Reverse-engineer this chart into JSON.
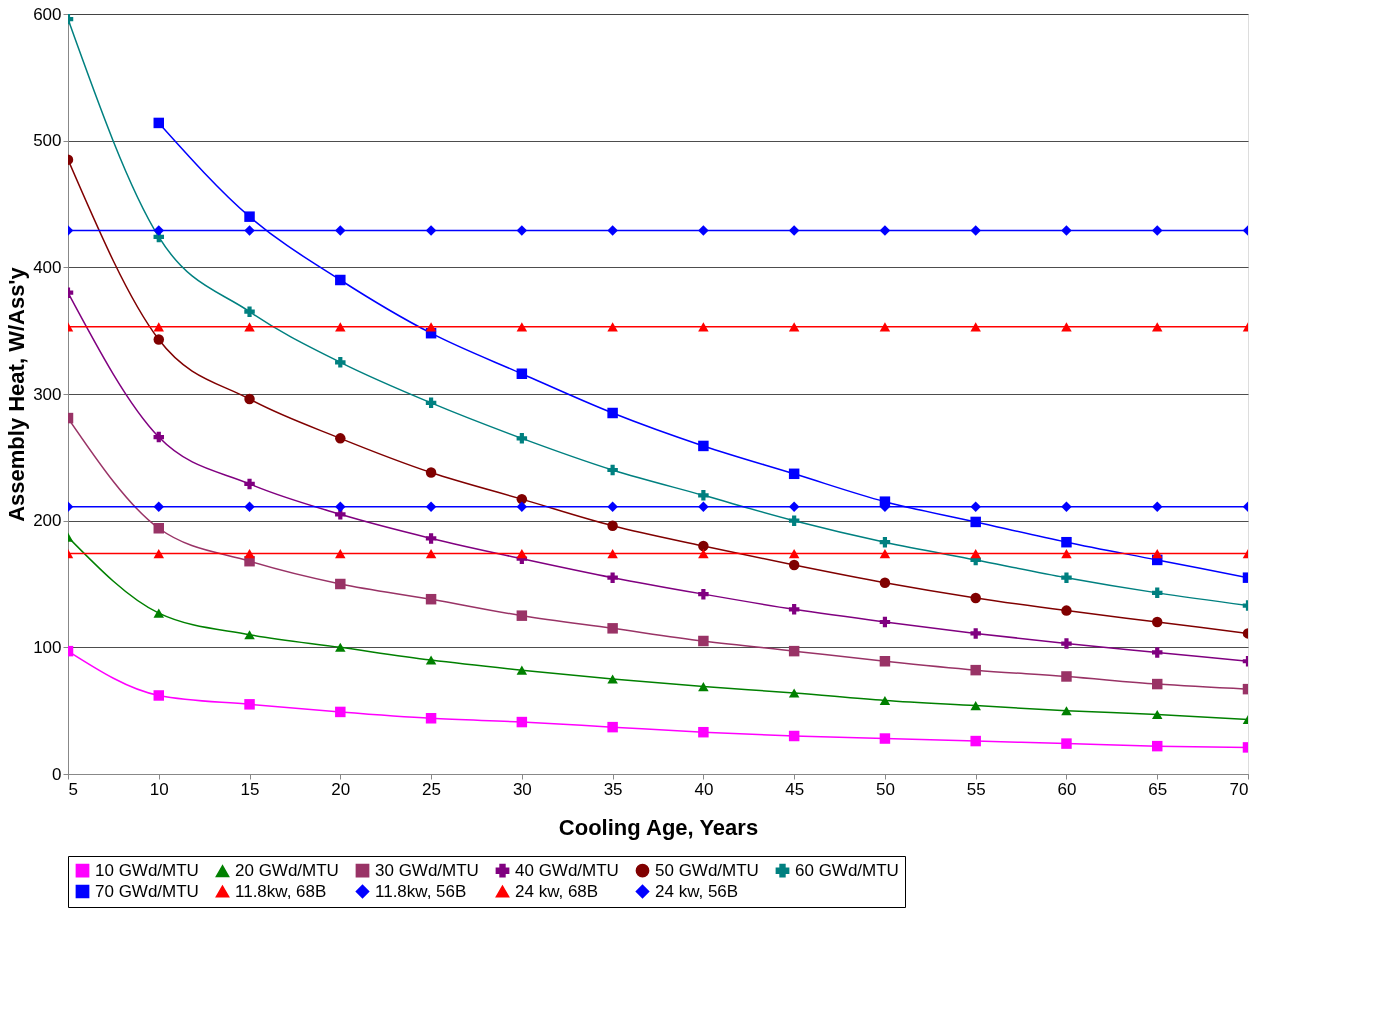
{
  "chart_data": {
    "type": "line",
    "xlabel": "Cooling Age, Years",
    "ylabel": "Assembly Heat, W/Ass'y",
    "x": [
      5,
      10,
      15,
      20,
      25,
      30,
      35,
      40,
      45,
      50,
      55,
      60,
      65,
      70
    ],
    "xlim": [
      5,
      70
    ],
    "xticks": [
      5,
      10,
      15,
      20,
      25,
      30,
      35,
      40,
      45,
      50,
      55,
      60,
      65,
      70
    ],
    "ylim": [
      0,
      600
    ],
    "yticks": [
      0,
      100,
      200,
      300,
      400,
      500,
      600
    ],
    "grid": "y",
    "legend": "bottom",
    "series": [
      {
        "name": "10 GWd/MTU",
        "color": "#ff00ff",
        "marker": "square",
        "values": [
          97,
          62,
          55,
          49,
          44,
          41,
          37,
          33,
          30,
          28,
          26,
          24,
          22,
          21
        ]
      },
      {
        "name": "20 GWd/MTU",
        "color": "#008000",
        "marker": "triangle",
        "values": [
          187,
          127,
          110,
          100,
          90,
          82,
          75,
          69,
          64,
          58,
          54,
          50,
          47,
          43
        ]
      },
      {
        "name": "30 GWd/MTU",
        "color": "#993366",
        "marker": "square",
        "values": [
          281,
          194,
          168,
          150,
          138,
          125,
          115,
          105,
          97,
          89,
          82,
          77,
          71,
          67
        ]
      },
      {
        "name": "40 GWd/MTU",
        "color": "#800080",
        "marker": "cross",
        "values": [
          380,
          266,
          229,
          205,
          186,
          170,
          155,
          142,
          130,
          120,
          111,
          103,
          96,
          89
        ]
      },
      {
        "name": "50 GWd/MTU",
        "color": "#800000",
        "marker": "circle",
        "values": [
          485,
          343,
          296,
          265,
          238,
          217,
          196,
          180,
          165,
          151,
          139,
          129,
          120,
          111
        ]
      },
      {
        "name": "60 GWd/MTU",
        "color": "#008080",
        "marker": "cross",
        "values": [
          596,
          424,
          365,
          325,
          293,
          265,
          240,
          220,
          200,
          183,
          169,
          155,
          143,
          133
        ]
      },
      {
        "name": "70 GWd/MTU",
        "color": "#0000ff",
        "marker": "square",
        "values": [
          null,
          514,
          440,
          390,
          348,
          316,
          285,
          259,
          237,
          215,
          199,
          183,
          169,
          155
        ]
      },
      {
        "name": "11.8kw, 68B",
        "color": "#ff0000",
        "marker": "triangle",
        "values": [
          174,
          174,
          174,
          174,
          174,
          174,
          174,
          174,
          174,
          174,
          174,
          174,
          174,
          174
        ]
      },
      {
        "name": "11.8kw, 56B",
        "color": "#0000ff",
        "marker": "diamond",
        "values": [
          211,
          211,
          211,
          211,
          211,
          211,
          211,
          211,
          211,
          211,
          211,
          211,
          211,
          211
        ]
      },
      {
        "name": "24 kw, 68B",
        "color": "#ff0000",
        "marker": "triangle",
        "values": [
          353,
          353,
          353,
          353,
          353,
          353,
          353,
          353,
          353,
          353,
          353,
          353,
          353,
          353
        ]
      },
      {
        "name": "24 kw, 56B",
        "color": "#0000ff",
        "marker": "diamond",
        "values": [
          429,
          429,
          429,
          429,
          429,
          429,
          429,
          429,
          429,
          429,
          429,
          429,
          429,
          429
        ]
      }
    ]
  }
}
